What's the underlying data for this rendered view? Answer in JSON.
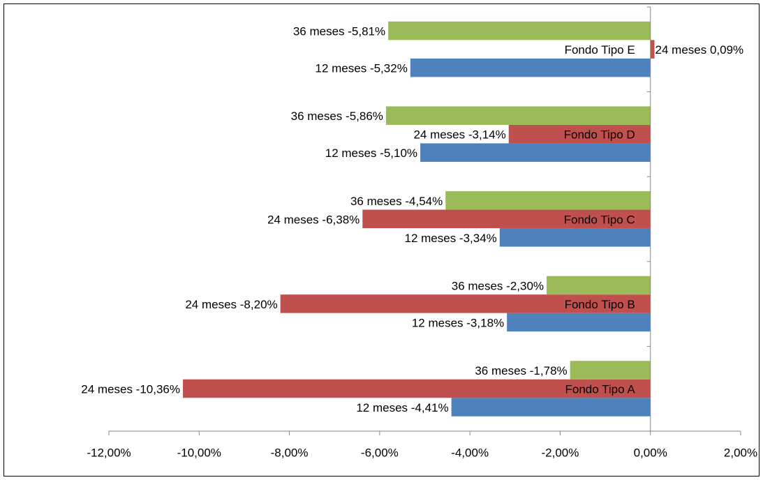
{
  "chart_data": {
    "type": "bar",
    "orientation": "horizontal",
    "categories": [
      "Fondo Tipo A",
      "Fondo Tipo B",
      "Fondo Tipo C",
      "Fondo Tipo D",
      "Fondo Tipo E"
    ],
    "series": [
      {
        "name": "12 meses",
        "color": "#4f81bd",
        "values": [
          -4.41,
          -3.18,
          -3.34,
          -5.1,
          -5.32
        ],
        "labels": [
          "12  meses -4,41%",
          "12  meses -3,18%",
          "12  meses -3,34%",
          "12  meses -5,10%",
          "12  meses -5,32%"
        ]
      },
      {
        "name": "24 meses",
        "color": "#c0504d",
        "values": [
          -10.36,
          -8.2,
          -6.38,
          -3.14,
          0.09
        ],
        "labels": [
          "24  meses -10,36%",
          "24  meses -8,20%",
          "24  meses -6,38%",
          "24  meses -3,14%",
          "24  meses 0,09%"
        ]
      },
      {
        "name": "36 meses",
        "color": "#9bbb59",
        "values": [
          -1.78,
          -2.3,
          -4.54,
          -5.86,
          -5.81
        ],
        "labels": [
          "36  meses -1,78%",
          "36  meses -2,30%",
          "36  meses -4,54%",
          "36  meses -5,86%",
          "36  meses -5,81%"
        ]
      }
    ],
    "xlim": [
      -12,
      2
    ],
    "xticks": [
      -12,
      -10,
      -8,
      -6,
      -4,
      -2,
      0,
      2
    ],
    "xtick_labels": [
      "-12,00%",
      "-10,00%",
      "-8,00%",
      "-6,00%",
      "-4,00%",
      "-2,00%",
      "0,00%",
      "2,00%"
    ],
    "title": "",
    "xlabel": "",
    "ylabel": "",
    "legend": "none",
    "grid": false
  }
}
